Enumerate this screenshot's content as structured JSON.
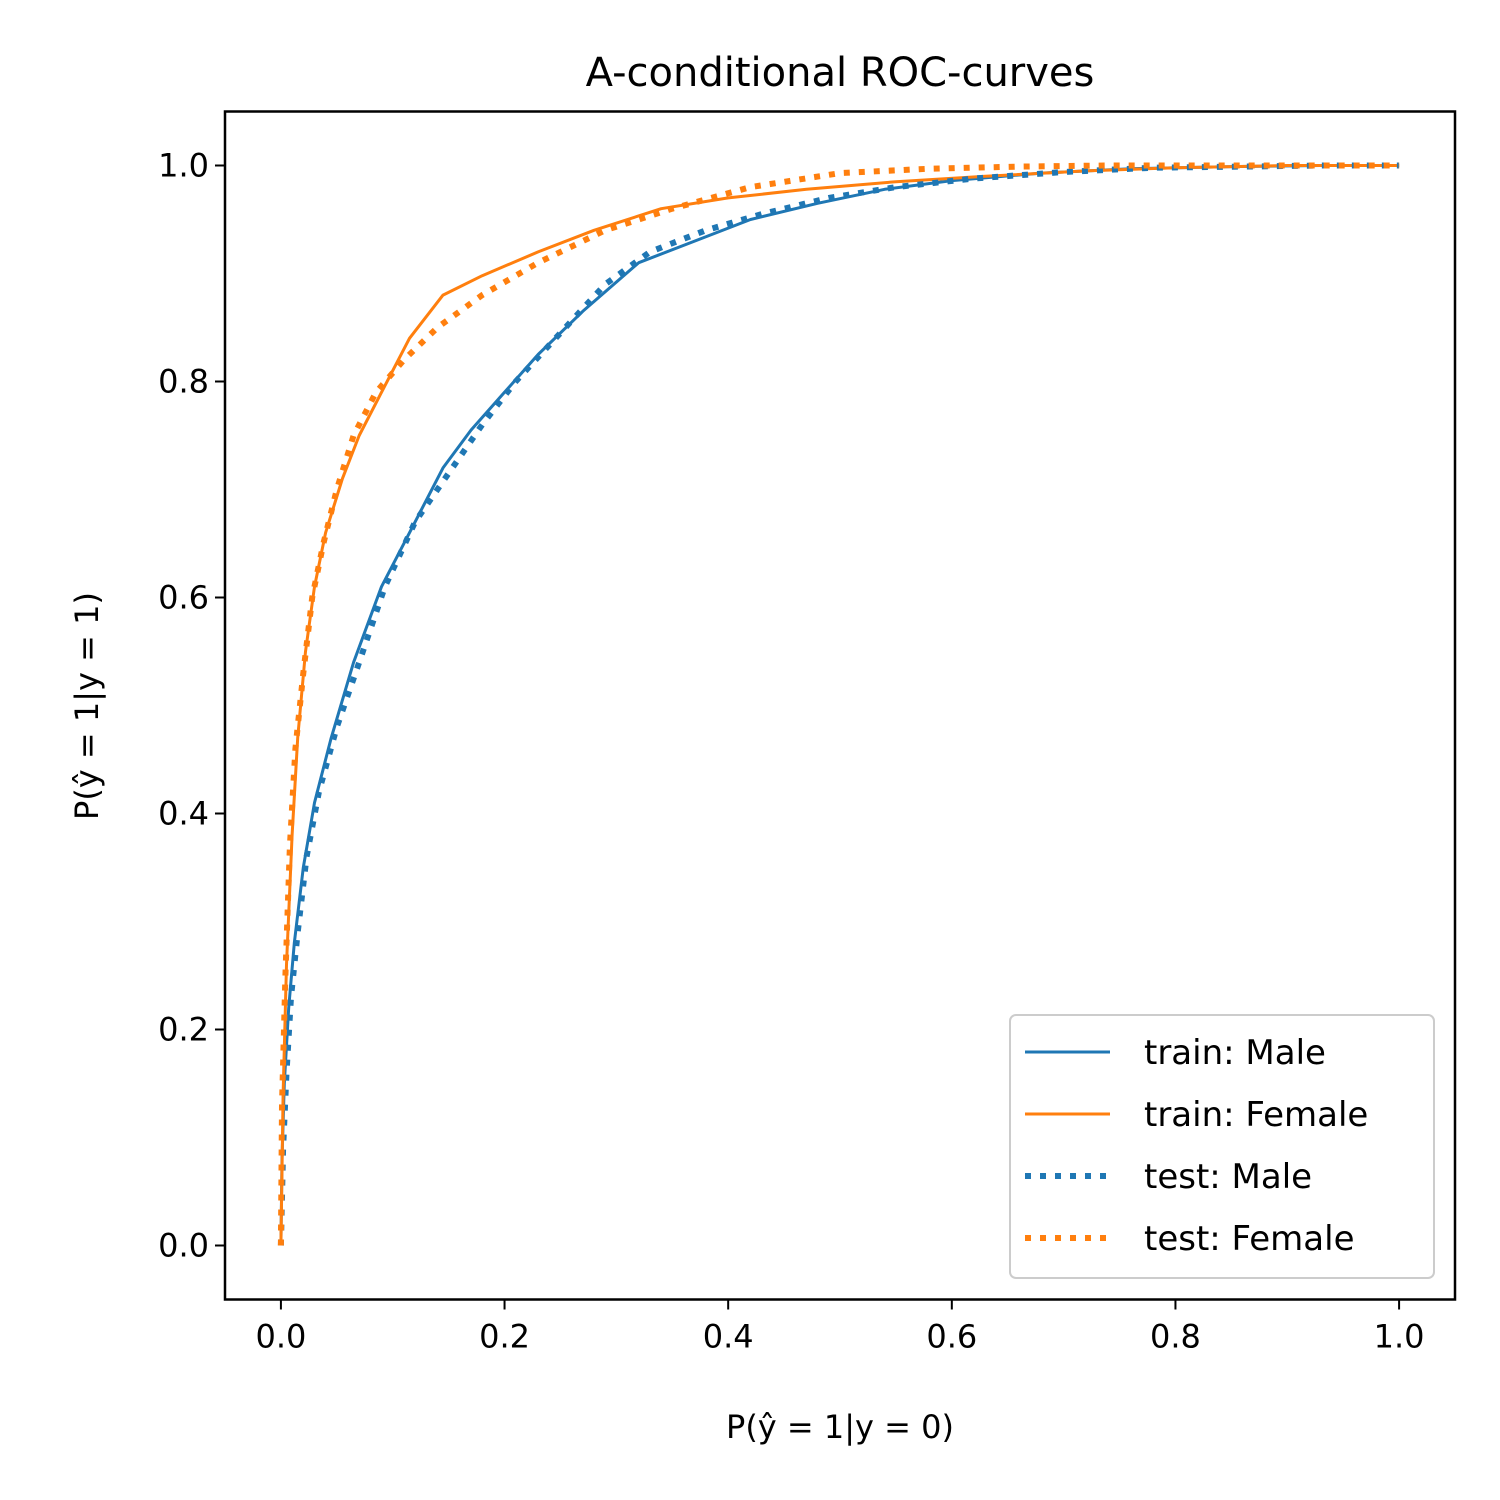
{
  "chart_data": {
    "type": "line",
    "title": "A-conditional ROC-curves",
    "xlabel": "P(ŷ = 1|y = 0)",
    "ylabel": "P(ŷ = 1|y = 1)",
    "xlim": [
      -0.05,
      1.05
    ],
    "ylim": [
      -0.05,
      1.05
    ],
    "xticks": [
      0.0,
      0.2,
      0.4,
      0.6,
      0.8,
      1.0
    ],
    "yticks": [
      0.0,
      0.2,
      0.4,
      0.6,
      0.8,
      1.0
    ],
    "xtick_labels": [
      "0.0",
      "0.2",
      "0.4",
      "0.6",
      "0.8",
      "1.0"
    ],
    "ytick_labels": [
      "0.0",
      "0.2",
      "0.4",
      "0.6",
      "0.8",
      "1.0"
    ],
    "grid": false,
    "legend_placement": "lower-right",
    "series": [
      {
        "name": "train: Male",
        "color": "#1f77b4",
        "style": "solid",
        "x": [
          0,
          0.001,
          0.003,
          0.007,
          0.012,
          0.02,
          0.03,
          0.045,
          0.065,
          0.09,
          0.12,
          0.145,
          0.17,
          0.2,
          0.23,
          0.27,
          0.32,
          0.37,
          0.42,
          0.48,
          0.54,
          0.6,
          0.68,
          0.76,
          0.85,
          0.93,
          1.0
        ],
        "y": [
          0,
          0.08,
          0.15,
          0.22,
          0.28,
          0.35,
          0.41,
          0.47,
          0.54,
          0.61,
          0.67,
          0.72,
          0.755,
          0.79,
          0.825,
          0.865,
          0.91,
          0.93,
          0.95,
          0.965,
          0.978,
          0.986,
          0.993,
          0.997,
          0.999,
          1.0,
          1.0
        ]
      },
      {
        "name": "train: Female",
        "color": "#ff7f0e",
        "style": "solid",
        "x": [
          0,
          0.002,
          0.005,
          0.01,
          0.015,
          0.022,
          0.03,
          0.04,
          0.055,
          0.07,
          0.09,
          0.115,
          0.145,
          0.18,
          0.23,
          0.28,
          0.34,
          0.4,
          0.47,
          0.55,
          0.63,
          0.72,
          0.8,
          0.9,
          1.0
        ],
        "y": [
          0,
          0.14,
          0.26,
          0.38,
          0.47,
          0.55,
          0.61,
          0.66,
          0.71,
          0.75,
          0.79,
          0.84,
          0.88,
          0.898,
          0.92,
          0.94,
          0.96,
          0.97,
          0.978,
          0.985,
          0.99,
          0.995,
          0.998,
          1.0,
          1.0
        ]
      },
      {
        "name": "test: Male",
        "color": "#1f77b4",
        "style": "dotted",
        "x": [
          0,
          0.002,
          0.005,
          0.009,
          0.015,
          0.023,
          0.034,
          0.05,
          0.07,
          0.093,
          0.12,
          0.15,
          0.18,
          0.21,
          0.25,
          0.29,
          0.33,
          0.38,
          0.43,
          0.49,
          0.55,
          0.62,
          0.7,
          0.78,
          0.86,
          0.93,
          1.0
        ],
        "y": [
          0,
          0.09,
          0.16,
          0.23,
          0.29,
          0.36,
          0.42,
          0.48,
          0.54,
          0.61,
          0.67,
          0.715,
          0.76,
          0.8,
          0.845,
          0.89,
          0.92,
          0.94,
          0.955,
          0.97,
          0.98,
          0.988,
          0.994,
          0.998,
          0.999,
          1.0,
          1.0
        ]
      },
      {
        "name": "test: Female",
        "color": "#ff7f0e",
        "style": "dotted",
        "x": [
          0,
          0.001,
          0.004,
          0.008,
          0.013,
          0.02,
          0.028,
          0.038,
          0.05,
          0.065,
          0.085,
          0.11,
          0.14,
          0.18,
          0.23,
          0.29,
          0.35,
          0.42,
          0.5,
          0.58,
          0.66,
          0.74,
          0.82,
          0.9,
          1.0
        ],
        "y": [
          0,
          0.13,
          0.25,
          0.37,
          0.46,
          0.53,
          0.6,
          0.65,
          0.7,
          0.75,
          0.79,
          0.82,
          0.85,
          0.88,
          0.91,
          0.94,
          0.96,
          0.98,
          0.993,
          0.997,
          0.999,
          1.0,
          1.0,
          1.0,
          1.0
        ]
      }
    ]
  }
}
